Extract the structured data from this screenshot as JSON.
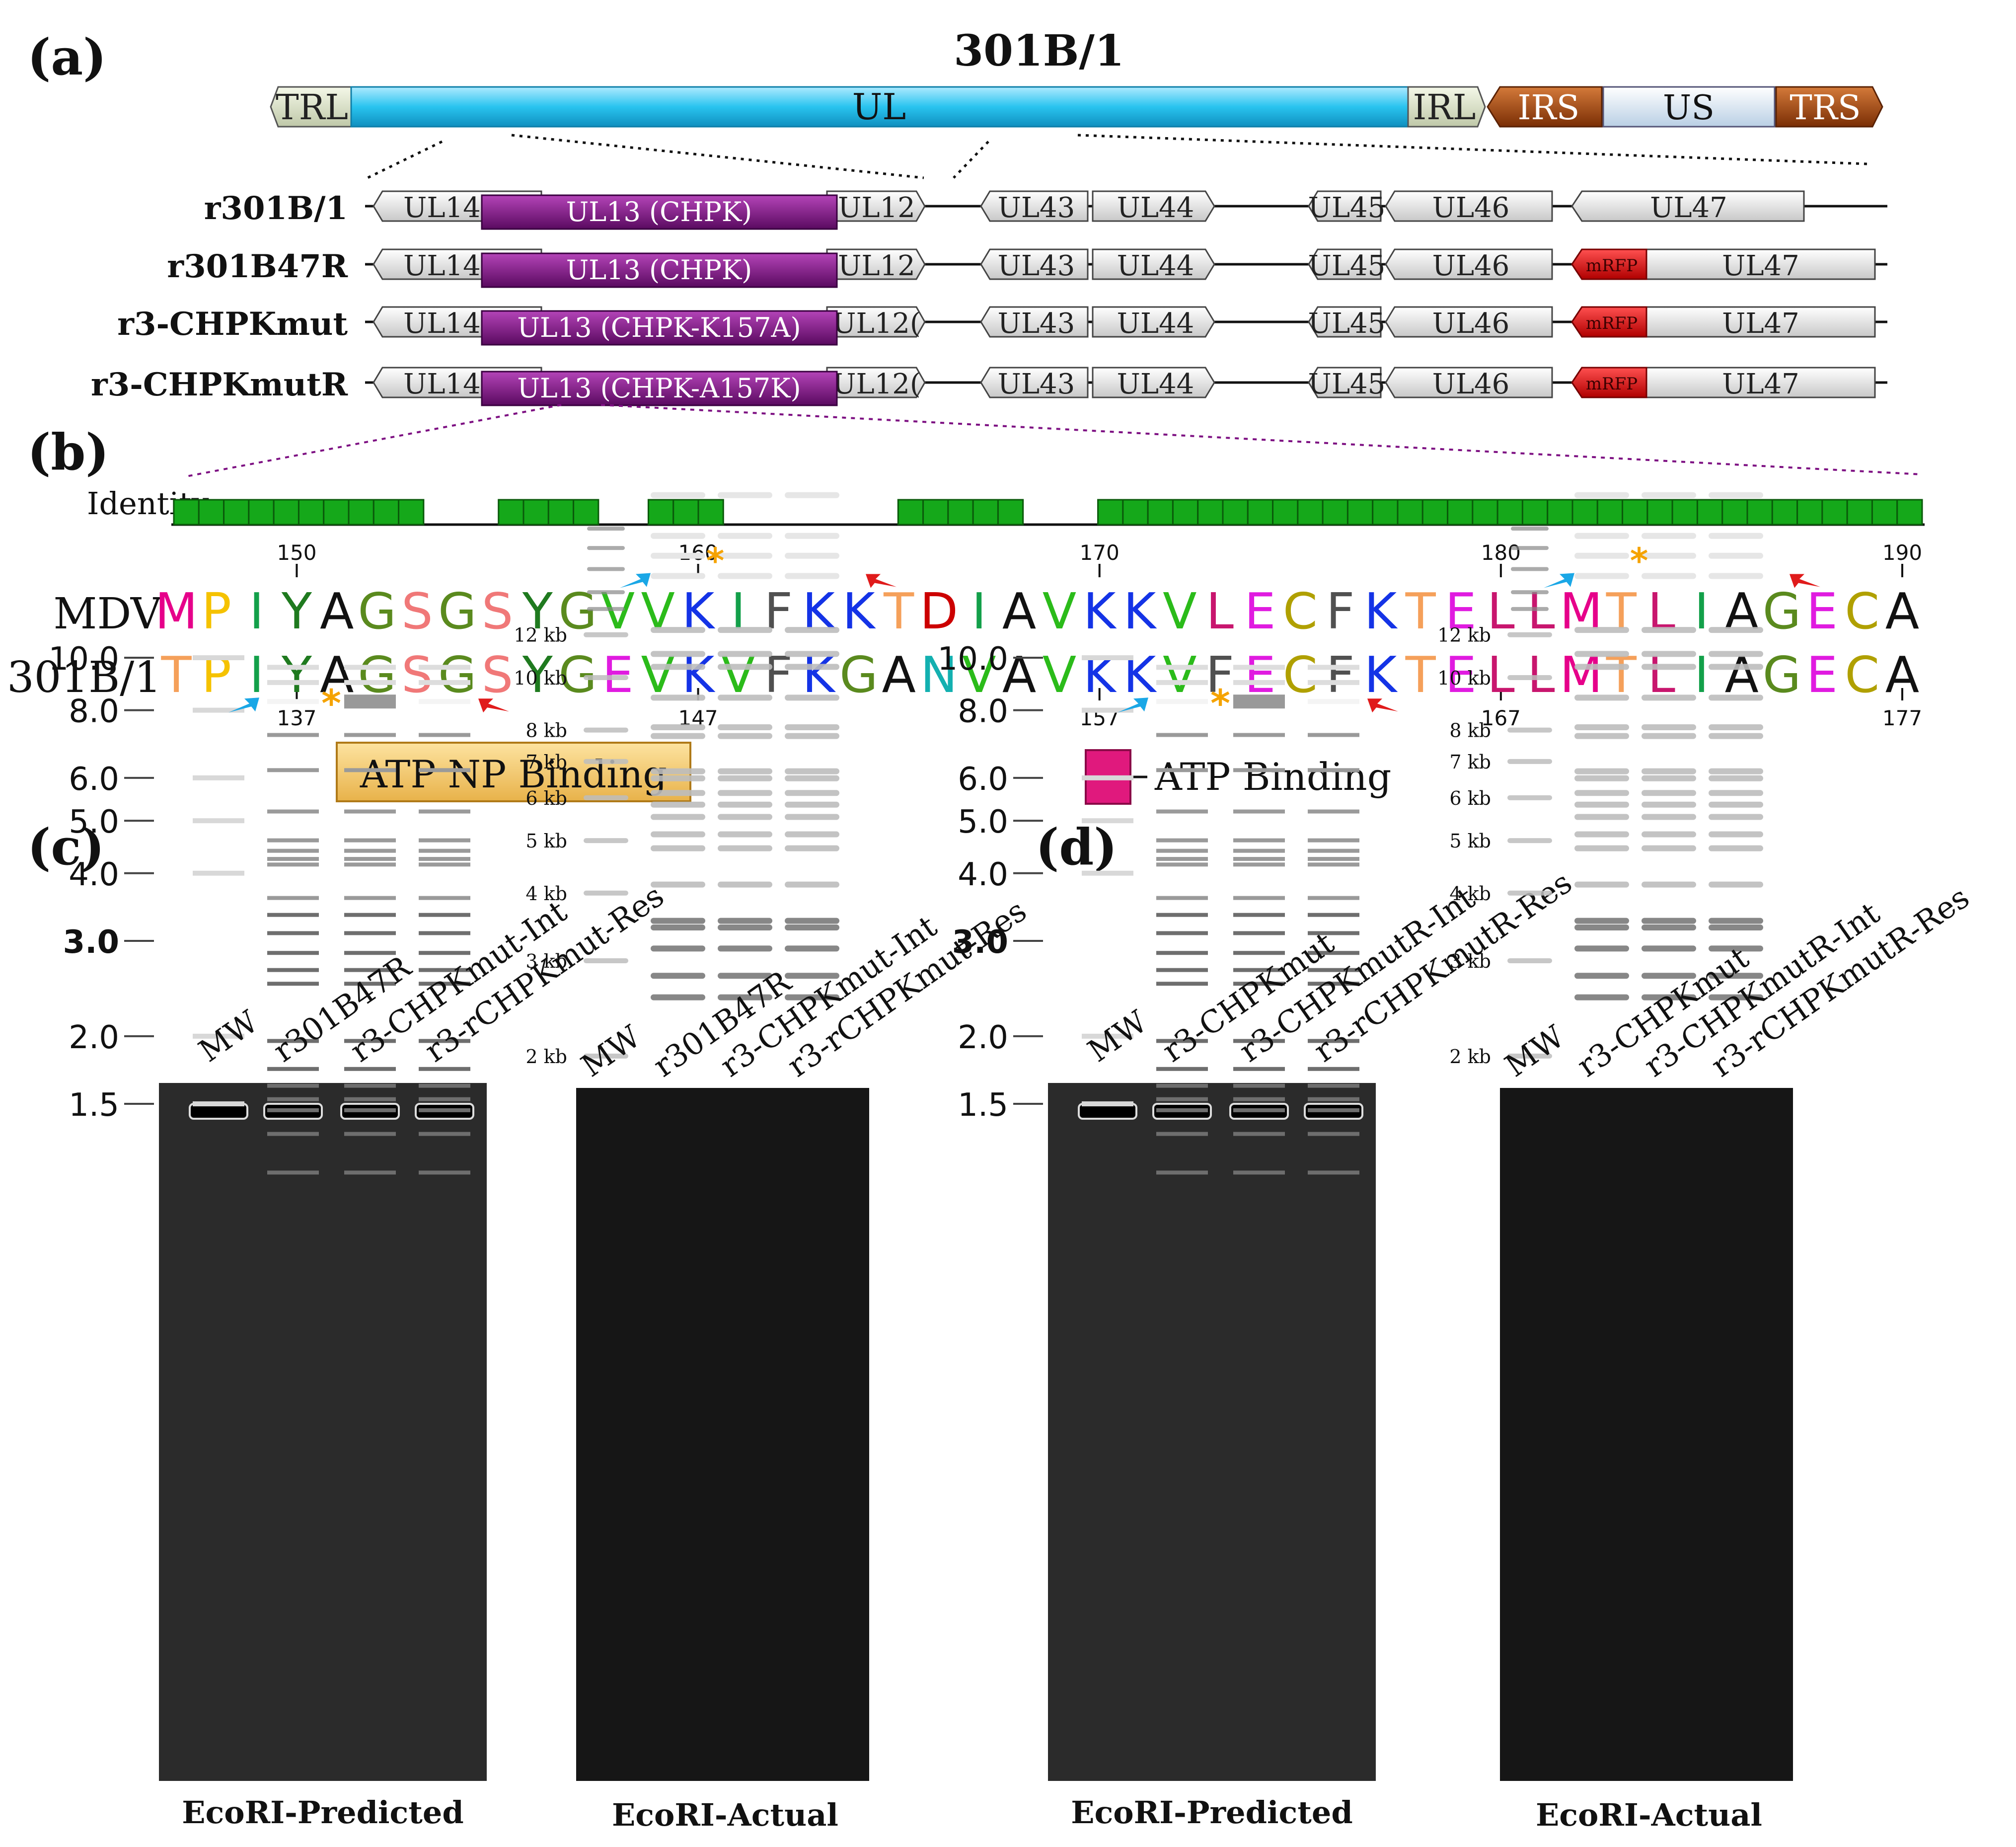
{
  "panels": {
    "a": "(a)",
    "b": "(b)",
    "c": "(c)",
    "d": "(d)"
  },
  "genome": {
    "title": "301B/1",
    "segments": {
      "TRL": "TRL",
      "UL": "UL",
      "IRL": "IRL",
      "IRS": "IRS",
      "US": "US",
      "TRS": "TRS"
    }
  },
  "constructs": [
    {
      "name": "r301B/1",
      "ul13": "UL13 (CHPK)",
      "ul12": "UL12",
      "mrfp": false
    },
    {
      "name": "r301B47R",
      "ul13": "UL13 (CHPK)",
      "ul12": "UL12",
      "mrfp": true
    },
    {
      "name": "r3-CHPKmut",
      "ul13": "UL13 (CHPK-K157A)",
      "ul12": "UL12(",
      "mrfp": true
    },
    {
      "name": "r3-CHPKmutR",
      "ul13": "UL13 (CHPK-A157K)",
      "ul12": "UL12(",
      "mrfp": true
    }
  ],
  "genes": {
    "ul14": "UL14",
    "ul43": "UL43",
    "ul44": "UL44",
    "ul45": "UL45",
    "ul46": "UL46",
    "ul47": "UL47",
    "mrfp": "mRFP"
  },
  "alignment": {
    "identity_label": "Identity",
    "identity_pattern": "1111111111000111100111000000011111000111111111111111111111111111111111",
    "top_ticks": [
      "150",
      "160",
      "170",
      "180",
      "190"
    ],
    "bottom_ticks": [
      "137",
      "147",
      "157",
      "167",
      "177"
    ],
    "rows": [
      {
        "label": "MDV",
        "seq": "MPIYAGSGSYGVVKIFKKTDIAVKKVLECFKTELLMTLIAGECA"
      },
      {
        "label": "301B/1",
        "seq": "TPIYAGSGSYGEVKVFKGANVAVKKVFECFKTELLMTLIAGECA"
      }
    ],
    "colors": {
      "M": "#e6008a",
      "P": "#f5c200",
      "T": "#f5a05a",
      "I": "#13a04a",
      "Y": "#1f7a1f",
      "A": "#111111",
      "G": "#5a8a1e",
      "S": "#f07878",
      "V": "#2bbb1a",
      "K": "#1433e6",
      "F": "#505050",
      "D": "#cc0000",
      "E": "#e01be0",
      "N": "#13b0b0",
      "L": "#c8166e",
      "C": "#b0a000"
    },
    "atp_np_label": "ATP NP Binding",
    "atp_label": "ATP  Binding"
  },
  "gels": [
    {
      "panel": "c",
      "predicted_lanes": [
        "MW",
        "r301B47R",
        "r3-CHPKmut-Int",
        "r3-rCHPKmut-Res"
      ],
      "actual_lanes": [
        "MW",
        "r301B47R",
        "r3-CHPKmut-Int",
        "r3-rCHPKmut-Res"
      ],
      "predicted_caption": "EcoRI-Predicted",
      "actual_caption": "EcoRI-Actual"
    },
    {
      "panel": "d",
      "predicted_lanes": [
        "MW",
        "r3-CHPKmut",
        "r3-CHPKmutR-Int",
        "r3-rCHPKmutR-Res"
      ],
      "actual_lanes": [
        "MW",
        "r3-CHPKmut",
        "r3-CHPKmutR-Int",
        "r3-rCHPKmutR-Res"
      ],
      "predicted_caption": "EcoRI-Predicted",
      "actual_caption": "EcoRI-Actual"
    }
  ],
  "predicted_marker_labels": [
    "10.0",
    "8.0",
    "6.0",
    "5.0",
    "4.0",
    "3.0",
    "2.0",
    "1.5"
  ],
  "actual_marker_labels": [
    "12 kb",
    "10 kb",
    "8 kb",
    "7 kb",
    "6 kb",
    "5 kb",
    "4 kb",
    "3 kb",
    "2 kb"
  ],
  "colors": {
    "ul": "#29c4ef",
    "irs": "#a9470c",
    "us": "#dce9f5",
    "ul13": "#7d0f82",
    "mrfp": "#e00000",
    "identity": "#15a81a",
    "atp_np": "#f7cf72",
    "atp": "#e0197d",
    "arrow_blue": "#1aa7e6",
    "arrow_red": "#e01b1b",
    "star": "#f5a300"
  }
}
